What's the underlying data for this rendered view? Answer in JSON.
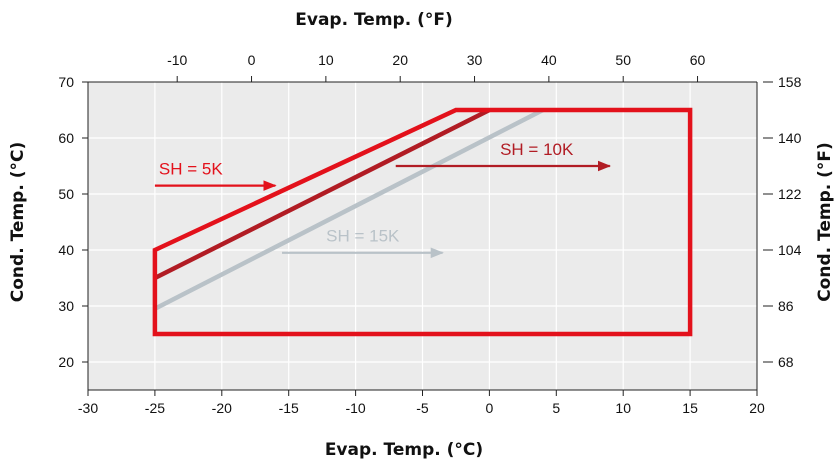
{
  "chart_data": {
    "type": "line",
    "title": "",
    "xlabel": "Evap. Temp. (°C)",
    "xlabel_top": "Evap. Temp. (°F)",
    "ylabel": "Cond. Temp. (°C)",
    "ylabel_right": "Cond. Temp. (°F)",
    "xlim": [
      -30,
      20
    ],
    "ylim": [
      15,
      70
    ],
    "x_ticks": [
      -30,
      -25,
      -20,
      -15,
      -10,
      -5,
      0,
      5,
      10,
      15,
      20
    ],
    "y_ticks": [
      20,
      30,
      40,
      50,
      60,
      70
    ],
    "top_ticks_f": [
      -10,
      0,
      10,
      20,
      30,
      40,
      50,
      60
    ],
    "right_ticks_f": [
      68,
      86,
      104,
      122,
      140,
      158
    ],
    "grid": true,
    "colors": {
      "sh5": "#e3111b",
      "sh10": "#b11c24",
      "sh15": "#b9c2c8",
      "plot_bg": "#ebebeb",
      "grid": "#ffffff"
    },
    "series": [
      {
        "name": "SH = 5K",
        "color": "#e3111b",
        "x": [
          -25,
          -25,
          15,
          15,
          -2.5,
          -25
        ],
        "y": [
          25,
          40,
          25,
          65,
          65,
          40
        ]
      },
      {
        "name": "SH = 10K",
        "color": "#b11c24",
        "x": [
          -25,
          0
        ],
        "y": [
          35,
          65
        ]
      },
      {
        "name": "SH = 15K",
        "color": "#b9c2c8",
        "x": [
          -25,
          4
        ],
        "y": [
          29.5,
          65
        ]
      }
    ],
    "annotations": [
      {
        "text": "SH = 5K",
        "color": "#e3111b",
        "arrow_from": [
          -25,
          51.5
        ],
        "arrow_to": [
          -16,
          51.5
        ],
        "label_at": [
          -25,
          53.5
        ]
      },
      {
        "text": "SH = 10K",
        "color": "#b11c24",
        "arrow_from": [
          -7,
          55
        ],
        "arrow_to": [
          9,
          55
        ],
        "label_at": [
          0.5,
          57
        ]
      },
      {
        "text": "SH = 15K",
        "color": "#b9c2c8",
        "arrow_from": [
          -15.5,
          39.5
        ],
        "arrow_to": [
          -3.5,
          39.5
        ],
        "label_at": [
          -12.5,
          41.5
        ]
      }
    ]
  }
}
